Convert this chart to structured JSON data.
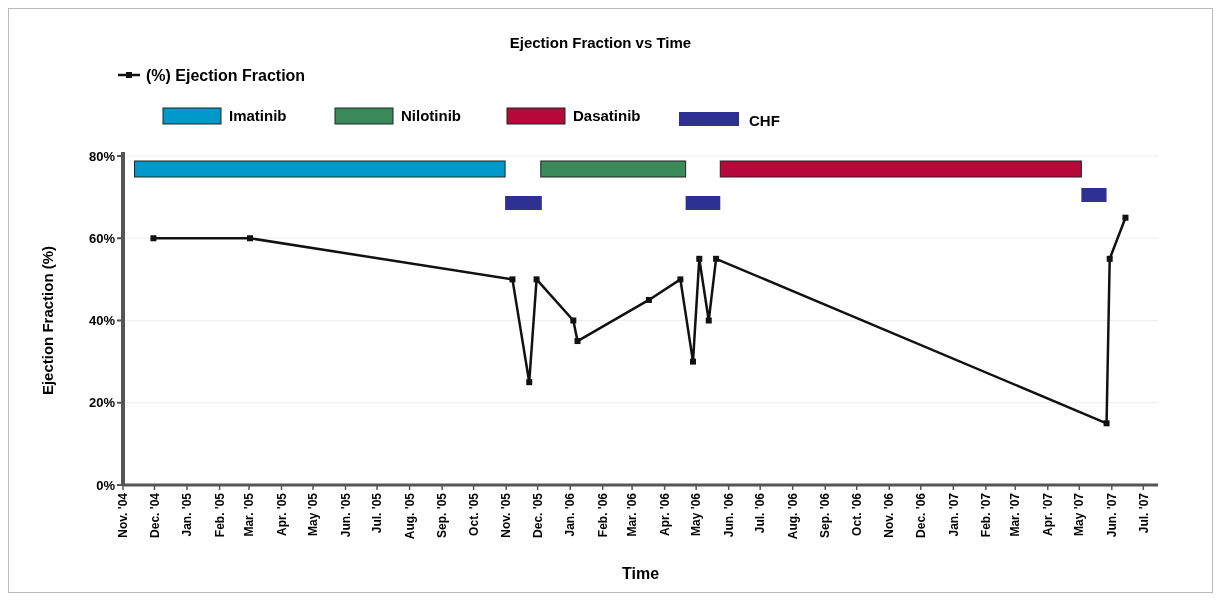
{
  "chart_data": {
    "type": "line",
    "title": "Ejection Fraction vs Time",
    "xlabel": "Time",
    "ylabel": "Ejection Fraction (%)",
    "x": [
      "2004-11-30",
      "2005-03-02",
      "2005-11-07",
      "2005-11-23",
      "2005-11-30",
      "2006-01-04",
      "2006-01-08",
      "2006-03-17",
      "2006-04-16",
      "2006-04-28",
      "2006-05-04",
      "2006-05-13",
      "2006-05-20",
      "2007-05-27",
      "2007-05-30",
      "2007-06-14"
    ],
    "series": [
      {
        "name": "(%) Ejection Fraction",
        "color": "#111111",
        "values": [
          60,
          60,
          50,
          25,
          50,
          40,
          35,
          45,
          50,
          30,
          55,
          40,
          55,
          15,
          55,
          65
        ]
      }
    ],
    "xlim": [
      "2004-11-01",
      "2007-07-15"
    ],
    "xticks": [
      {
        "value": "2004-11-01",
        "label": "Nov. '04"
      },
      {
        "value": "2004-12-01",
        "label": "Dec. '04"
      },
      {
        "value": "2005-01-01",
        "label": "Jan. '05"
      },
      {
        "value": "2005-02-01",
        "label": "Feb. '05"
      },
      {
        "value": "2005-03-01",
        "label": "Mar. '05"
      },
      {
        "value": "2005-04-01",
        "label": "Apr. '05"
      },
      {
        "value": "2005-05-01",
        "label": "May '05"
      },
      {
        "value": "2005-06-01",
        "label": "Jun. '05"
      },
      {
        "value": "2005-07-01",
        "label": "Jul. '05"
      },
      {
        "value": "2005-08-01",
        "label": "Aug. '05"
      },
      {
        "value": "2005-09-01",
        "label": "Sep. '05"
      },
      {
        "value": "2005-10-01",
        "label": "Oct. '05"
      },
      {
        "value": "2005-11-01",
        "label": "Nov. '05"
      },
      {
        "value": "2005-12-01",
        "label": "Dec. '05"
      },
      {
        "value": "2006-01-01",
        "label": "Jan. '06"
      },
      {
        "value": "2006-02-01",
        "label": "Feb. '06"
      },
      {
        "value": "2006-03-01",
        "label": "Mar. '06"
      },
      {
        "value": "2006-04-01",
        "label": "Apr. '06"
      },
      {
        "value": "2006-05-01",
        "label": "May '06"
      },
      {
        "value": "2006-06-01",
        "label": "Jun. '06"
      },
      {
        "value": "2006-07-01",
        "label": "Jul. '06"
      },
      {
        "value": "2006-08-01",
        "label": "Aug. '06"
      },
      {
        "value": "2006-09-01",
        "label": "Sep. '06"
      },
      {
        "value": "2006-10-01",
        "label": "Oct. '06"
      },
      {
        "value": "2006-11-01",
        "label": "Nov. '06"
      },
      {
        "value": "2006-12-01",
        "label": "Dec. '06"
      },
      {
        "value": "2007-01-01",
        "label": "Jan. '07"
      },
      {
        "value": "2007-02-01",
        "label": "Feb. '07"
      },
      {
        "value": "2007-03-01",
        "label": "Mar. '07"
      },
      {
        "value": "2007-04-01",
        "label": "Apr. '07"
      },
      {
        "value": "2007-05-01",
        "label": "May '07"
      },
      {
        "value": "2007-06-01",
        "label": "Jun. '07"
      },
      {
        "value": "2007-07-01",
        "label": "Jul. '07"
      }
    ],
    "ylim": [
      0,
      80
    ],
    "yticks": [
      {
        "value": 0,
        "label": "0%"
      },
      {
        "value": 20,
        "label": "20%"
      },
      {
        "value": 40,
        "label": "40%"
      },
      {
        "value": 60,
        "label": "60%"
      },
      {
        "value": 80,
        "label": "80%"
      }
    ],
    "bands": [
      {
        "axis": "x",
        "from": "2004-11-12",
        "to": "2005-10-31",
        "label": "Imatinib",
        "color": "#0099cc"
      },
      {
        "axis": "x",
        "from": "2005-12-04",
        "to": "2006-04-21",
        "label": "Nilotinib",
        "color": "#3a8a5a"
      },
      {
        "axis": "x",
        "from": "2006-05-24",
        "to": "2007-05-03",
        "label": "Dasatinib",
        "color": "#b5093a"
      },
      {
        "axis": "x",
        "from": "2005-10-31",
        "to": "2005-12-05",
        "label": "CHF",
        "color": "#2e3192"
      },
      {
        "axis": "x",
        "from": "2006-04-21",
        "to": "2006-05-24",
        "color": "#2e3192"
      },
      {
        "axis": "x",
        "from": "2007-05-03",
        "to": "2007-05-27",
        "color": "#2e3192"
      }
    ],
    "grid": "y",
    "legend": "top left",
    "marker": "square",
    "line_style": "solid"
  }
}
